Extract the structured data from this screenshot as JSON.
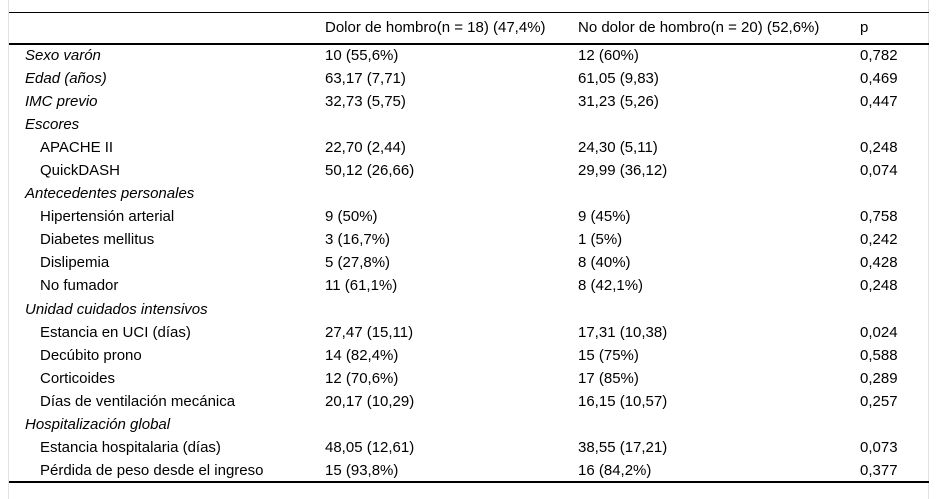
{
  "table": {
    "columns": {
      "variable": "",
      "group1": "Dolor de hombro(n = 18) (47,4%)",
      "group2": "No dolor de hombro(n = 20) (52,6%)",
      "p": "p"
    },
    "rows": [
      {
        "label": "Sexo varón",
        "italic": true,
        "indent": false,
        "group1": "10 (55,6%)",
        "group2": "12 (60%)",
        "p": "0,782"
      },
      {
        "label": "Edad (años)",
        "italic": true,
        "indent": false,
        "group1": "63,17 (7,71)",
        "group2": "61,05 (9,83)",
        "p": "0,469"
      },
      {
        "label": "IMC previo",
        "italic": true,
        "indent": false,
        "group1": "32,73 (5,75)",
        "group2": "31,23 (5,26)",
        "p": "0,447"
      },
      {
        "label": "Escores",
        "italic": true,
        "indent": false,
        "group1": "",
        "group2": "",
        "p": ""
      },
      {
        "label": "APACHE II",
        "italic": false,
        "indent": true,
        "group1": "22,70 (2,44)",
        "group2": "24,30 (5,11)",
        "p": "0,248"
      },
      {
        "label": "QuickDASH",
        "italic": false,
        "indent": true,
        "group1": "50,12 (26,66)",
        "group2": "29,99 (36,12)",
        "p": "0,074"
      },
      {
        "label": "Antecedentes personales",
        "italic": true,
        "indent": false,
        "group1": "",
        "group2": "",
        "p": ""
      },
      {
        "label": "Hipertensión arterial",
        "italic": false,
        "indent": true,
        "group1": "9 (50%)",
        "group2": "9 (45%)",
        "p": "0,758"
      },
      {
        "label": "Diabetes mellitus",
        "italic": false,
        "indent": true,
        "group1": "3 (16,7%)",
        "group2": "1 (5%)",
        "p": "0,242"
      },
      {
        "label": "Dislipemia",
        "italic": false,
        "indent": true,
        "group1": "5 (27,8%)",
        "group2": "8 (40%)",
        "p": "0,428"
      },
      {
        "label": "No fumador",
        "italic": false,
        "indent": true,
        "group1": "11 (61,1%)",
        "group2": "8 (42,1%)",
        "p": "0,248"
      },
      {
        "label": "Unidad cuidados intensivos",
        "italic": true,
        "indent": false,
        "group1": "",
        "group2": "",
        "p": ""
      },
      {
        "label": "Estancia en UCI (días)",
        "italic": false,
        "indent": true,
        "group1": "27,47 (15,11)",
        "group2": "17,31 (10,38)",
        "p": "0,024"
      },
      {
        "label": "Decúbito prono",
        "italic": false,
        "indent": true,
        "group1": "14 (82,4%)",
        "group2": "15 (75%)",
        "p": "0,588"
      },
      {
        "label": "Corticoides",
        "italic": false,
        "indent": true,
        "group1": "12 (70,6%)",
        "group2": "17 (85%)",
        "p": "0,289"
      },
      {
        "label": "Días de ventilación mecánica",
        "italic": false,
        "indent": true,
        "group1": "20,17 (10,29)",
        "group2": "16,15 (10,57)",
        "p": "0,257"
      },
      {
        "label": "Hospitalización global",
        "italic": true,
        "indent": false,
        "group1": "",
        "group2": "",
        "p": ""
      },
      {
        "label": "Estancia hospitalaria (días)",
        "italic": false,
        "indent": true,
        "group1": "48,05 (12,61)",
        "group2": "38,55 (17,21)",
        "p": "0,073"
      },
      {
        "label": "Pérdida de peso desde el ingreso",
        "italic": false,
        "indent": true,
        "group1": "15 (93,8%)",
        "group2": "16 (84,2%)",
        "p": "0,377"
      }
    ]
  }
}
